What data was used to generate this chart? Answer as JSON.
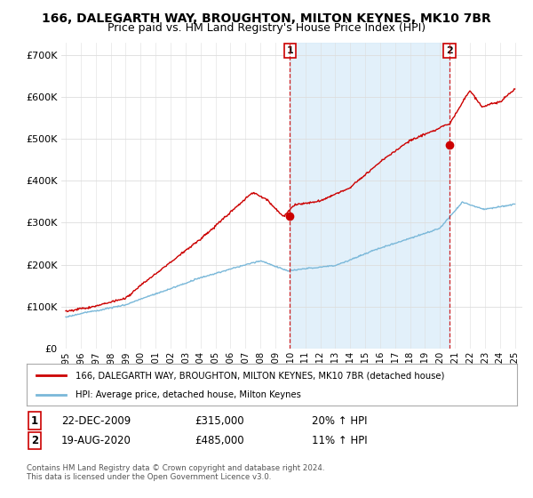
{
  "title_line1": "166, DALEGARTH WAY, BROUGHTON, MILTON KEYNES, MK10 7BR",
  "title_line2": "Price paid vs. HM Land Registry's House Price Index (HPI)",
  "title_fontsize": 10,
  "subtitle_fontsize": 9,
  "ytick_vals": [
    0,
    100000,
    200000,
    300000,
    400000,
    500000,
    600000,
    700000
  ],
  "ylim": [
    0,
    730000
  ],
  "xlim_start": 1994.7,
  "xlim_end": 2025.5,
  "xtick_years": [
    1995,
    1996,
    1997,
    1998,
    1999,
    2000,
    2001,
    2002,
    2003,
    2004,
    2005,
    2006,
    2007,
    2008,
    2009,
    2010,
    2011,
    2012,
    2013,
    2014,
    2015,
    2016,
    2017,
    2018,
    2019,
    2020,
    2021,
    2022,
    2023,
    2024,
    2025
  ],
  "hpi_color": "#7ab8d9",
  "price_color": "#cc0000",
  "fill_color": "#d6eaf8",
  "marker1_date": 2009.97,
  "marker1_price": 315000,
  "marker2_date": 2020.63,
  "marker2_price": 485000,
  "vline_color": "#cc0000",
  "legend_label1": "166, DALEGARTH WAY, BROUGHTON, MILTON KEYNES, MK10 7BR (detached house)",
  "legend_label2": "HPI: Average price, detached house, Milton Keynes",
  "annotation1_label": "1",
  "annotation1_price_display": "£315,000",
  "annotation1_hpi_change": "20% ↑ HPI",
  "annotation1_date_display": "22-DEC-2009",
  "annotation2_label": "2",
  "annotation2_price_display": "£485,000",
  "annotation2_hpi_change": "11% ↑ HPI",
  "annotation2_date_display": "19-AUG-2020",
  "footer": "Contains HM Land Registry data © Crown copyright and database right 2024.\nThis data is licensed under the Open Government Licence v3.0.",
  "background_color": "#ffffff",
  "grid_color": "#dddddd"
}
